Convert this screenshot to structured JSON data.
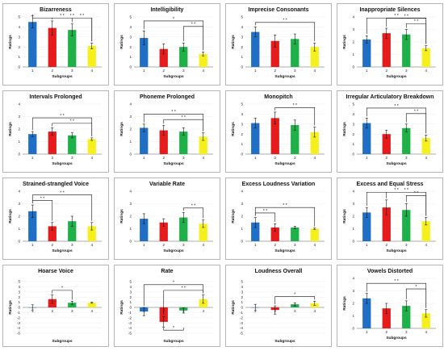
{
  "chart_data": [
    {
      "type": "bar",
      "title": "Bizarreness",
      "xlabel": "Subgroups",
      "ylabel": "Ratings",
      "categories": [
        "1",
        "2",
        "3",
        "4"
      ],
      "values": [
        4.5,
        3.9,
        3.7,
        2.1
      ],
      "errors": [
        0.6,
        0.7,
        0.6,
        0.3
      ],
      "ylim": [
        0,
        5
      ],
      "yticks": [
        0,
        1,
        2,
        3,
        4,
        5
      ],
      "sig": [
        {
          "a": 1,
          "b": 4,
          "label": "* *"
        },
        {
          "a": 2,
          "b": 4,
          "label": "* *"
        },
        {
          "a": 3,
          "b": 4,
          "label": "* *"
        }
      ]
    },
    {
      "type": "bar",
      "title": "Intelligibility",
      "xlabel": "Subgroups",
      "ylabel": "Ratings",
      "categories": [
        "1",
        "2",
        "3",
        "4"
      ],
      "values": [
        2.9,
        1.8,
        2.0,
        1.3
      ],
      "errors": [
        0.7,
        0.5,
        0.4,
        0.2
      ],
      "ylim": [
        0,
        5
      ],
      "yticks": [
        0,
        1,
        2,
        3,
        4,
        5
      ],
      "sig": [
        {
          "a": 1,
          "b": 4,
          "label": "*"
        },
        {
          "a": 3,
          "b": 4,
          "label": "* *"
        }
      ]
    },
    {
      "type": "bar",
      "title": "Imprecise Consonants",
      "xlabel": "Subgroups",
      "ylabel": "Ratings",
      "categories": [
        "1",
        "2",
        "3",
        "4"
      ],
      "values": [
        3.5,
        2.6,
        2.8,
        2.0
      ],
      "errors": [
        0.5,
        0.6,
        0.5,
        0.4
      ],
      "ylim": [
        0,
        5
      ],
      "yticks": [
        0,
        1,
        2,
        3,
        4,
        5
      ],
      "sig": [
        {
          "a": 1,
          "b": 4,
          "label": "* *"
        }
      ]
    },
    {
      "type": "bar",
      "title": "Inappropriate Silences",
      "xlabel": "Subgroups",
      "ylabel": "Ratings",
      "categories": [
        "1",
        "2",
        "3",
        "4"
      ],
      "values": [
        2.2,
        2.7,
        2.6,
        1.5
      ],
      "errors": [
        0.3,
        0.4,
        0.4,
        0.2
      ],
      "ylim": [
        0,
        4
      ],
      "yticks": [
        0,
        1,
        2,
        3,
        4
      ],
      "sig": [
        {
          "a": 1,
          "b": 4,
          "label": "* *"
        },
        {
          "a": 2,
          "b": 4,
          "label": "* *"
        },
        {
          "a": 3,
          "b": 4,
          "label": "* *"
        }
      ]
    },
    {
      "type": "bar",
      "title": "Intervals Prolonged",
      "xlabel": "Subgroups",
      "ylabel": "Ratings",
      "categories": [
        "1",
        "2",
        "3",
        "4"
      ],
      "values": [
        1.6,
        1.8,
        1.5,
        1.2
      ],
      "errors": [
        0.2,
        0.3,
        0.2,
        0.1
      ],
      "ylim": [
        0,
        4
      ],
      "yticks": [
        0,
        1,
        2,
        3,
        4
      ],
      "sig": [
        {
          "a": 1,
          "b": 4,
          "label": "* *"
        },
        {
          "a": 2,
          "b": 4,
          "label": "* *"
        }
      ]
    },
    {
      "type": "bar",
      "title": "Phoneme Prolonged",
      "xlabel": "Subgroups",
      "ylabel": "Ratings",
      "categories": [
        "1",
        "2",
        "3",
        "4"
      ],
      "values": [
        2.1,
        1.9,
        1.8,
        1.4
      ],
      "errors": [
        0.3,
        0.4,
        0.3,
        0.3
      ],
      "ylim": [
        0,
        4
      ],
      "yticks": [
        0,
        1,
        2,
        3,
        4
      ],
      "sig": [
        {
          "a": 1,
          "b": 4,
          "label": "* *"
        },
        {
          "a": 2,
          "b": 4,
          "label": "* *"
        }
      ]
    },
    {
      "type": "bar",
      "title": "Monopitch",
      "xlabel": "Subgroups",
      "ylabel": "Ratings",
      "categories": [
        "1",
        "2",
        "3",
        "4"
      ],
      "values": [
        3.1,
        3.6,
        2.9,
        2.2
      ],
      "errors": [
        0.5,
        0.6,
        0.5,
        0.5
      ],
      "ylim": [
        0,
        5
      ],
      "yticks": [
        0,
        1,
        2,
        3,
        4,
        5
      ],
      "sig": [
        {
          "a": 2,
          "b": 4,
          "label": "* *"
        }
      ]
    },
    {
      "type": "bar",
      "title": "Irregular Articulatory Breakdown",
      "xlabel": "Subgroups",
      "ylabel": "Ratings",
      "categories": [
        "1",
        "2",
        "3",
        "4"
      ],
      "values": [
        3.1,
        2.0,
        2.6,
        1.6
      ],
      "errors": [
        0.5,
        0.4,
        0.4,
        0.3
      ],
      "ylim": [
        0,
        5
      ],
      "yticks": [
        0,
        1,
        2,
        3,
        4,
        5
      ],
      "sig": [
        {
          "a": 1,
          "b": 4,
          "label": "* *"
        },
        {
          "a": 3,
          "b": 4,
          "label": "* *"
        }
      ]
    },
    {
      "type": "bar",
      "title": "Strained-strangled Voice",
      "xlabel": "Subgroups",
      "ylabel": "Ratings",
      "categories": [
        "1",
        "2",
        "3",
        "4"
      ],
      "values": [
        2.4,
        1.2,
        1.6,
        1.2
      ],
      "errors": [
        0.5,
        0.3,
        0.4,
        0.3
      ],
      "ylim": [
        0,
        4
      ],
      "yticks": [
        0,
        1,
        2,
        3,
        4
      ],
      "sig": [
        {
          "a": 1,
          "b": 2,
          "label": "* *"
        },
        {
          "a": 1,
          "b": 4,
          "label": "* *"
        }
      ]
    },
    {
      "type": "bar",
      "title": "Variable Rate",
      "xlabel": "Subgroups",
      "ylabel": "Ratings",
      "categories": [
        "1",
        "2",
        "3",
        "4"
      ],
      "values": [
        1.8,
        1.5,
        1.9,
        1.4
      ],
      "errors": [
        0.4,
        0.3,
        0.4,
        0.3
      ],
      "ylim": [
        0,
        4
      ],
      "yticks": [
        0,
        1,
        2,
        3,
        4
      ],
      "sig": [
        {
          "a": 3,
          "b": 4,
          "label": "* *"
        }
      ]
    },
    {
      "type": "bar",
      "title": "Excess Loudness Variation",
      "xlabel": "Subgroups",
      "ylabel": "Ratings",
      "categories": [
        "1",
        "2",
        "3",
        "4"
      ],
      "values": [
        1.5,
        1.1,
        1.1,
        1.0
      ],
      "errors": [
        0.4,
        0.3,
        0.1,
        0.05
      ],
      "ylim": [
        0,
        4
      ],
      "yticks": [
        0,
        1,
        2,
        3,
        4
      ],
      "sig": [
        {
          "a": 1,
          "b": 2,
          "label": "* *"
        },
        {
          "a": 1,
          "b": 4,
          "label": "* *"
        }
      ]
    },
    {
      "type": "bar",
      "title": "Excess and Equal Stress",
      "xlabel": "Subgroups",
      "ylabel": "Ratings",
      "categories": [
        "1",
        "2",
        "3",
        "4"
      ],
      "values": [
        2.3,
        2.7,
        2.5,
        1.6
      ],
      "errors": [
        0.4,
        0.6,
        0.5,
        0.3
      ],
      "ylim": [
        0,
        4
      ],
      "yticks": [
        0,
        1,
        2,
        3,
        4
      ],
      "sig": [
        {
          "a": 1,
          "b": 4,
          "label": "* *"
        },
        {
          "a": 2,
          "b": 4,
          "label": "* *"
        },
        {
          "a": 3,
          "b": 4,
          "label": "* *"
        }
      ]
    },
    {
      "type": "bar",
      "title": "Hoarse Voice",
      "xlabel": "Subgroups",
      "ylabel": "Ratings",
      "categories": [
        "1",
        "2",
        "3",
        "4"
      ],
      "values": [
        0.0,
        1.6,
        0.9,
        0.9
      ],
      "errors": [
        0.5,
        0.8,
        0.3,
        0.1
      ],
      "ylim": [
        -5,
        5
      ],
      "yticks": [
        -5,
        -4,
        -3,
        -2,
        -1,
        0,
        1,
        2,
        3,
        4,
        5
      ],
      "sig": [
        {
          "a": 2,
          "b": 3,
          "label": "*"
        }
      ]
    },
    {
      "type": "bar",
      "title": "Rate",
      "xlabel": "Subgroups",
      "ylabel": "Ratings",
      "categories": [
        "1",
        "2",
        "3",
        "4"
      ],
      "values": [
        -0.8,
        -2.8,
        -0.6,
        1.6
      ],
      "errors": [
        0.8,
        1.0,
        0.5,
        0.8
      ],
      "ylim": [
        -5,
        5
      ],
      "yticks": [
        -5,
        -4,
        -3,
        -2,
        -1,
        0,
        1,
        2,
        3,
        4,
        5
      ],
      "sig": [
        {
          "a": 1,
          "b": 4,
          "label": "*"
        },
        {
          "a": 2,
          "b": 4,
          "label": "* *"
        },
        {
          "a": 2,
          "b": 3,
          "label": "*",
          "below": true
        }
      ]
    },
    {
      "type": "bar",
      "title": "Loudness Overall",
      "xlabel": "Subgroups",
      "ylabel": "Ratings",
      "categories": [
        "1",
        "2",
        "3",
        "4"
      ],
      "values": [
        0.0,
        -0.5,
        0.6,
        0.8
      ],
      "errors": [
        0.6,
        0.8,
        0.3,
        0.4
      ],
      "ylim": [
        -5,
        5
      ],
      "yticks": [
        -5,
        -4,
        -3,
        -2,
        -1,
        0,
        1,
        2,
        3,
        4,
        5
      ],
      "sig": [
        {
          "a": 2,
          "b": 4,
          "label": "*"
        }
      ]
    },
    {
      "type": "bar",
      "title": "Vowels Distorted",
      "xlabel": "Subgroups",
      "ylabel": "Ratings",
      "categories": [
        "1",
        "2",
        "3",
        "4"
      ],
      "values": [
        2.4,
        1.6,
        1.8,
        1.2
      ],
      "errors": [
        0.4,
        0.4,
        0.4,
        0.3
      ],
      "ylim": [
        0,
        4
      ],
      "yticks": [
        0,
        1,
        2,
        3,
        4
      ],
      "sig": [
        {
          "a": 1,
          "b": 4,
          "label": "* *"
        },
        {
          "a": 3,
          "b": 4,
          "label": "*"
        }
      ]
    }
  ],
  "colors": {
    "bars": [
      "#1f6fc6",
      "#e61c1c",
      "#1fb04a",
      "#f5f01c"
    ],
    "panel_border": "#b5b5b5"
  }
}
